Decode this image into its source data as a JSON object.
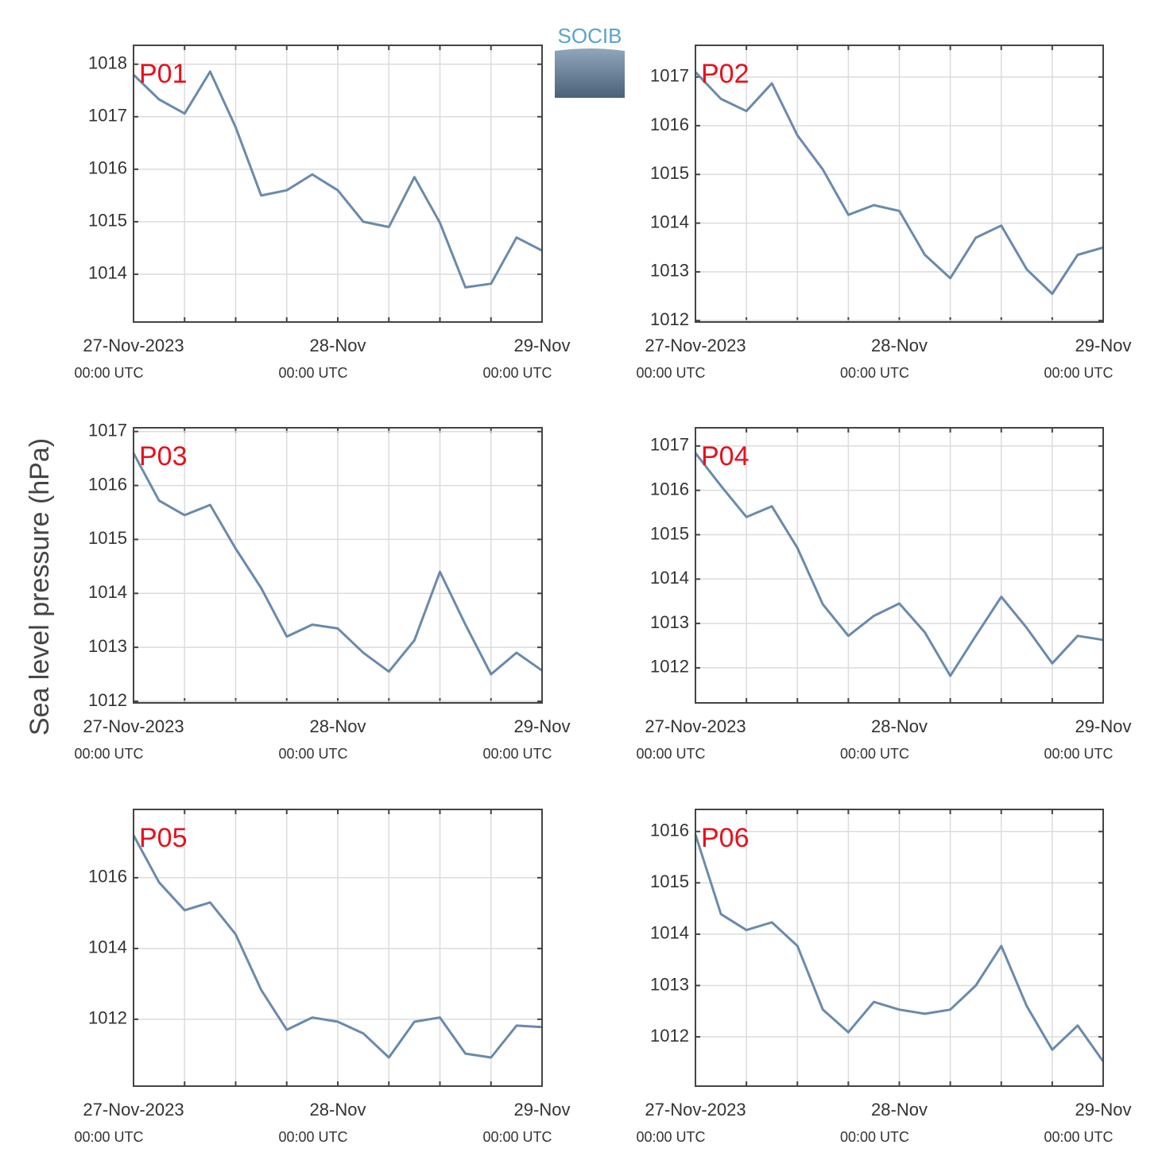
{
  "logo": "SOCIB",
  "ylabel": "Sea level pressure (hPa)",
  "chart_data": [
    {
      "type": "line",
      "title": "P01",
      "color": "#6a8aab",
      "grid": true,
      "x": [
        "2023-11-27T00:00",
        "2023-11-27T03:00",
        "2023-11-27T06:00",
        "2023-11-27T09:00",
        "2023-11-27T12:00",
        "2023-11-27T15:00",
        "2023-11-27T18:00",
        "2023-11-27T21:00",
        "2023-11-28T00:00",
        "2023-11-28T03:00",
        "2023-11-28T06:00",
        "2023-11-28T09:00",
        "2023-11-28T12:00",
        "2023-11-28T15:00",
        "2023-11-28T18:00",
        "2023-11-28T21:00",
        "2023-11-29T00:00"
      ],
      "values": [
        1017.8,
        1017.33,
        1017.06,
        1017.86,
        1016.8,
        1015.5,
        1015.6,
        1015.9,
        1015.6,
        1015.0,
        1014.9,
        1015.85,
        1014.98,
        1013.75,
        1013.82,
        1014.7,
        1014.45
      ],
      "xlim": [
        "2023-11-27T00:00",
        "2023-11-29T00:00"
      ],
      "ylim": [
        1013.09,
        1018.36
      ],
      "yticks": [
        1014,
        1015,
        1016,
        1017,
        1018
      ],
      "xticks": [
        {
          "value": "2023-11-27T00:00",
          "label": "27-Nov-2023",
          "sublabel": "00:00 UTC"
        },
        {
          "value": "2023-11-28T00:00",
          "label": "28-Nov",
          "sublabel": "00:00 UTC"
        },
        {
          "value": "2023-11-29T00:00",
          "label": "29-Nov",
          "sublabel": "00:00 UTC"
        }
      ],
      "xminorticks": [
        "2023-11-27T00:00",
        "2023-11-27T06:00",
        "2023-11-27T12:00",
        "2023-11-27T18:00",
        "2023-11-28T00:00",
        "2023-11-28T06:00",
        "2023-11-28T12:00",
        "2023-11-28T18:00",
        "2023-11-29T00:00"
      ]
    },
    {
      "type": "line",
      "title": "P02",
      "color": "#6a8aab",
      "grid": true,
      "x": [
        "2023-11-27T00:00",
        "2023-11-27T03:00",
        "2023-11-27T06:00",
        "2023-11-27T09:00",
        "2023-11-27T12:00",
        "2023-11-27T15:00",
        "2023-11-27T18:00",
        "2023-11-27T21:00",
        "2023-11-28T00:00",
        "2023-11-28T03:00",
        "2023-11-28T06:00",
        "2023-11-28T09:00",
        "2023-11-28T12:00",
        "2023-11-28T15:00",
        "2023-11-28T18:00",
        "2023-11-28T21:00",
        "2023-11-29T00:00"
      ],
      "values": [
        1017.1,
        1016.55,
        1016.3,
        1016.87,
        1015.8,
        1015.1,
        1014.17,
        1014.37,
        1014.25,
        1013.35,
        1012.87,
        1013.7,
        1013.95,
        1013.05,
        1012.55,
        1013.35,
        1013.5
      ],
      "xlim": [
        "2023-11-27T00:00",
        "2023-11-29T00:00"
      ],
      "ylim": [
        1011.97,
        1017.65
      ],
      "yticks": [
        1012,
        1013,
        1014,
        1015,
        1016,
        1017
      ],
      "xticks": [
        {
          "value": "2023-11-27T00:00",
          "label": "27-Nov-2023",
          "sublabel": "00:00 UTC"
        },
        {
          "value": "2023-11-28T00:00",
          "label": "28-Nov",
          "sublabel": "00:00 UTC"
        },
        {
          "value": "2023-11-29T00:00",
          "label": "29-Nov",
          "sublabel": "00:00 UTC"
        }
      ],
      "xminorticks": [
        "2023-11-27T00:00",
        "2023-11-27T06:00",
        "2023-11-27T12:00",
        "2023-11-27T18:00",
        "2023-11-28T00:00",
        "2023-11-28T06:00",
        "2023-11-28T12:00",
        "2023-11-28T18:00",
        "2023-11-29T00:00"
      ]
    },
    {
      "type": "line",
      "title": "P03",
      "color": "#6a8aab",
      "grid": true,
      "x": [
        "2023-11-27T00:00",
        "2023-11-27T03:00",
        "2023-11-27T06:00",
        "2023-11-27T09:00",
        "2023-11-27T12:00",
        "2023-11-27T15:00",
        "2023-11-27T18:00",
        "2023-11-27T21:00",
        "2023-11-28T00:00",
        "2023-11-28T03:00",
        "2023-11-28T06:00",
        "2023-11-28T09:00",
        "2023-11-28T12:00",
        "2023-11-28T15:00",
        "2023-11-28T18:00",
        "2023-11-28T21:00",
        "2023-11-29T00:00"
      ],
      "values": [
        1016.6,
        1015.72,
        1015.45,
        1015.64,
        1014.83,
        1014.1,
        1013.2,
        1013.42,
        1013.35,
        1012.9,
        1012.55,
        1013.13,
        1014.4,
        1013.42,
        1012.5,
        1012.9,
        1012.57
      ],
      "xlim": [
        "2023-11-27T00:00",
        "2023-11-29T00:00"
      ],
      "ylim": [
        1011.97,
        1017.07
      ],
      "yticks": [
        1012,
        1013,
        1014,
        1015,
        1016,
        1017
      ],
      "xticks": [
        {
          "value": "2023-11-27T00:00",
          "label": "27-Nov-2023",
          "sublabel": "00:00 UTC"
        },
        {
          "value": "2023-11-28T00:00",
          "label": "28-Nov",
          "sublabel": "00:00 UTC"
        },
        {
          "value": "2023-11-29T00:00",
          "label": "29-Nov",
          "sublabel": "00:00 UTC"
        }
      ],
      "xminorticks": [
        "2023-11-27T00:00",
        "2023-11-27T06:00",
        "2023-11-27T12:00",
        "2023-11-27T18:00",
        "2023-11-28T00:00",
        "2023-11-28T06:00",
        "2023-11-28T12:00",
        "2023-11-28T18:00",
        "2023-11-29T00:00"
      ]
    },
    {
      "type": "line",
      "title": "P04",
      "color": "#6a8aab",
      "grid": true,
      "x": [
        "2023-11-27T00:00",
        "2023-11-27T03:00",
        "2023-11-27T06:00",
        "2023-11-27T09:00",
        "2023-11-27T12:00",
        "2023-11-27T15:00",
        "2023-11-27T18:00",
        "2023-11-27T21:00",
        "2023-11-28T00:00",
        "2023-11-28T03:00",
        "2023-11-28T06:00",
        "2023-11-28T09:00",
        "2023-11-28T12:00",
        "2023-11-28T15:00",
        "2023-11-28T18:00",
        "2023-11-28T21:00",
        "2023-11-29T00:00"
      ],
      "values": [
        1016.84,
        1016.1,
        1015.4,
        1015.64,
        1014.7,
        1013.43,
        1012.72,
        1013.17,
        1013.45,
        1012.8,
        1011.82,
        1012.72,
        1013.6,
        1012.9,
        1012.1,
        1012.72,
        1012.63
      ],
      "xlim": [
        "2023-11-27T00:00",
        "2023-11-29T00:00"
      ],
      "ylim": [
        1011.21,
        1017.41
      ],
      "yticks": [
        1012,
        1013,
        1014,
        1015,
        1016,
        1017
      ],
      "xticks": [
        {
          "value": "2023-11-27T00:00",
          "label": "27-Nov-2023",
          "sublabel": "00:00 UTC"
        },
        {
          "value": "2023-11-28T00:00",
          "label": "28-Nov",
          "sublabel": "00:00 UTC"
        },
        {
          "value": "2023-11-29T00:00",
          "label": "29-Nov",
          "sublabel": "00:00 UTC"
        }
      ],
      "xminorticks": [
        "2023-11-27T00:00",
        "2023-11-27T06:00",
        "2023-11-27T12:00",
        "2023-11-27T18:00",
        "2023-11-28T00:00",
        "2023-11-28T06:00",
        "2023-11-28T12:00",
        "2023-11-28T18:00",
        "2023-11-29T00:00"
      ]
    },
    {
      "type": "line",
      "title": "P05",
      "color": "#6a8aab",
      "grid": true,
      "x": [
        "2023-11-27T00:00",
        "2023-11-27T03:00",
        "2023-11-27T06:00",
        "2023-11-27T09:00",
        "2023-11-27T12:00",
        "2023-11-27T15:00",
        "2023-11-27T18:00",
        "2023-11-27T21:00",
        "2023-11-28T00:00",
        "2023-11-28T03:00",
        "2023-11-28T06:00",
        "2023-11-28T09:00",
        "2023-11-28T12:00",
        "2023-11-28T15:00",
        "2023-11-28T18:00",
        "2023-11-28T21:00",
        "2023-11-29T00:00"
      ],
      "values": [
        1017.2,
        1015.87,
        1015.08,
        1015.3,
        1014.4,
        1012.83,
        1011.7,
        1012.05,
        1011.93,
        1011.6,
        1010.92,
        1011.93,
        1012.05,
        1011.03,
        1010.92,
        1011.82,
        1011.78
      ],
      "xlim": [
        "2023-11-27T00:00",
        "2023-11-29T00:00"
      ],
      "ylim": [
        1010.11,
        1017.93
      ],
      "yticks": [
        1012,
        1014,
        1016
      ],
      "xticks": [
        {
          "value": "2023-11-27T00:00",
          "label": "27-Nov-2023",
          "sublabel": "00:00 UTC"
        },
        {
          "value": "2023-11-28T00:00",
          "label": "28-Nov",
          "sublabel": "00:00 UTC"
        },
        {
          "value": "2023-11-29T00:00",
          "label": "29-Nov",
          "sublabel": "00:00 UTC"
        }
      ],
      "xminorticks": [
        "2023-11-27T00:00",
        "2023-11-27T06:00",
        "2023-11-27T12:00",
        "2023-11-27T18:00",
        "2023-11-28T00:00",
        "2023-11-28T06:00",
        "2023-11-28T12:00",
        "2023-11-28T18:00",
        "2023-11-29T00:00"
      ]
    },
    {
      "type": "line",
      "title": "P06",
      "color": "#6a8aab",
      "grid": true,
      "x": [
        "2023-11-27T00:00",
        "2023-11-27T03:00",
        "2023-11-27T06:00",
        "2023-11-27T09:00",
        "2023-11-27T12:00",
        "2023-11-27T15:00",
        "2023-11-27T18:00",
        "2023-11-27T21:00",
        "2023-11-28T00:00",
        "2023-11-28T03:00",
        "2023-11-28T06:00",
        "2023-11-28T09:00",
        "2023-11-28T12:00",
        "2023-11-28T15:00",
        "2023-11-28T18:00",
        "2023-11-28T21:00",
        "2023-11-29T00:00"
      ],
      "values": [
        1015.94,
        1014.39,
        1014.08,
        1014.23,
        1013.77,
        1012.53,
        1012.09,
        1012.68,
        1012.53,
        1012.45,
        1012.53,
        1013.0,
        1013.77,
        1012.6,
        1011.75,
        1012.22,
        1011.52
      ],
      "xlim": [
        "2023-11-27T00:00",
        "2023-11-29T00:00"
      ],
      "ylim": [
        1011.04,
        1016.43
      ],
      "yticks": [
        1012,
        1013,
        1014,
        1015,
        1016
      ],
      "xticks": [
        {
          "value": "2023-11-27T00:00",
          "label": "27-Nov-2023",
          "sublabel": "00:00 UTC"
        },
        {
          "value": "2023-11-28T00:00",
          "label": "28-Nov",
          "sublabel": "00:00 UTC"
        },
        {
          "value": "2023-11-29T00:00",
          "label": "29-Nov",
          "sublabel": "00:00 UTC"
        }
      ],
      "xminorticks": [
        "2023-11-27T00:00",
        "2023-11-27T06:00",
        "2023-11-27T12:00",
        "2023-11-27T18:00",
        "2023-11-28T00:00",
        "2023-11-28T06:00",
        "2023-11-28T12:00",
        "2023-11-28T18:00",
        "2023-11-29T00:00"
      ]
    }
  ]
}
